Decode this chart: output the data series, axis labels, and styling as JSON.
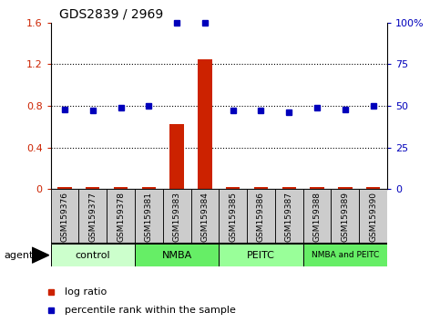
{
  "title": "GDS2839 / 2969",
  "samples": [
    "GSM159376",
    "GSM159377",
    "GSM159378",
    "GSM159381",
    "GSM159383",
    "GSM159384",
    "GSM159385",
    "GSM159386",
    "GSM159387",
    "GSM159388",
    "GSM159389",
    "GSM159390"
  ],
  "log_ratio": [
    0.02,
    0.02,
    0.02,
    0.02,
    0.62,
    1.25,
    0.02,
    0.02,
    0.02,
    0.02,
    0.02,
    0.02
  ],
  "percentile_rank": [
    48,
    47,
    49,
    50,
    100,
    100,
    47,
    47,
    46,
    49,
    48,
    50
  ],
  "groups": [
    {
      "label": "control",
      "start": 0,
      "end": 3,
      "color": "#ccffcc"
    },
    {
      "label": "NMBA",
      "start": 3,
      "end": 6,
      "color": "#66ee66"
    },
    {
      "label": "PEITC",
      "start": 6,
      "end": 9,
      "color": "#99ff99"
    },
    {
      "label": "NMBA and PEITC",
      "start": 9,
      "end": 12,
      "color": "#66ee66"
    }
  ],
  "ylim_left": [
    0,
    1.6
  ],
  "ylim_right": [
    0,
    100
  ],
  "yticks_left": [
    0,
    0.4,
    0.8,
    1.2,
    1.6
  ],
  "yticks_right": [
    0,
    25,
    50,
    75,
    100
  ],
  "ytick_labels_left": [
    "0",
    "0.4",
    "0.8",
    "1.2",
    "1.6"
  ],
  "ytick_labels_right": [
    "0",
    "25",
    "50",
    "75",
    "100%"
  ],
  "bar_color": "#cc2200",
  "dot_color": "#0000bb",
  "agent_label": "agent",
  "legend_items": [
    {
      "color": "#cc2200",
      "label": "log ratio"
    },
    {
      "color": "#0000bb",
      "label": "percentile rank within the sample"
    }
  ],
  "sample_box_color": "#cccccc",
  "grid_yticks": [
    0.4,
    0.8,
    1.2
  ]
}
